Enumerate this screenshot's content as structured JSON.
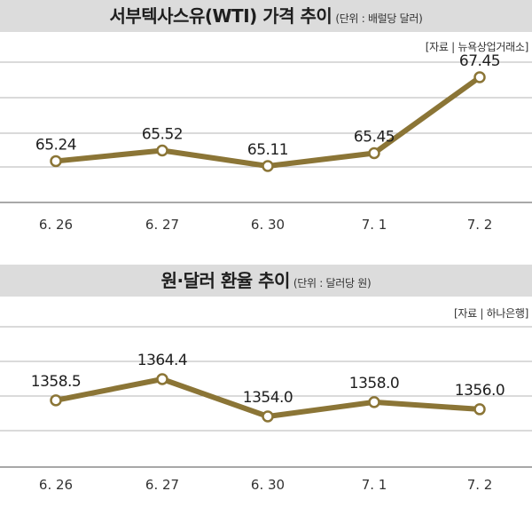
{
  "chart_data": [
    {
      "type": "line",
      "title": "서부텍사스유(WTI) 가격 추이",
      "unit_note": "(단위 : 배럴당 달러)",
      "source": "[자료 | 뉴욕상업거래소]",
      "categories": [
        "6. 26",
        "6. 27",
        "6. 30",
        "7. 1",
        "7. 2"
      ],
      "values": [
        65.24,
        65.52,
        65.11,
        65.45,
        67.45
      ],
      "value_labels": [
        "65.24",
        "65.52",
        "65.11",
        "65.45",
        "67.45"
      ],
      "line_color": "#8b7536",
      "grid": true
    },
    {
      "type": "line",
      "title": "원·달러 환율 추이",
      "unit_note": "(단위 : 달러당 원)",
      "source": "[자료 | 하나은행]",
      "categories": [
        "6. 26",
        "6. 27",
        "6. 30",
        "7. 1",
        "7. 2"
      ],
      "values": [
        1358.5,
        1364.4,
        1354.0,
        1358.0,
        1356.0
      ],
      "value_labels": [
        "1358.5",
        "1364.4",
        "1354.0",
        "1358.0",
        "1356.0"
      ],
      "line_color": "#8b7536",
      "grid": true
    }
  ]
}
